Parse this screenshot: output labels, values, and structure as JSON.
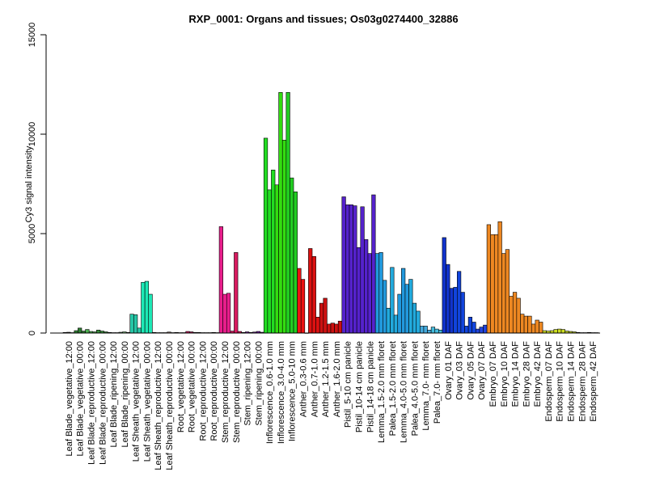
{
  "chart_data": {
    "type": "bar",
    "title": "RXP_0001: Organs and tissues; Os03g0274400_32886",
    "xlabel": "",
    "ylabel": "Cy3 signal intensity",
    "ylim": [
      0,
      15000
    ],
    "yticks": [
      0,
      5000,
      10000,
      15000
    ],
    "grid": false,
    "legend": "none",
    "categories": [
      "Leaf Blade_vegetative_12:00",
      "Leaf Blade_vegetative_00:00",
      "Leaf Blade_reproductive_12:00",
      "Leaf Blade_reproductive_00:00",
      "Leaf Blade_ripening_12:00",
      "Leaf Blade_ripening_00:00",
      "Leaf Sheath_vegetative_12:00",
      "Leaf Sheath_vegetative_00:00",
      "Leaf Sheath_reproductive_12:00",
      "Leaf Sheath_reproductive_00:00",
      "Root_vegetative_12:00",
      "Root_vegetative_00:00",
      "Root_reproductive_12:00",
      "Root_reproductive_00:00",
      "Stem_reproductive_12:00",
      "Stem_reproductive_00:00",
      "Stem_ripening_12:00",
      "Stem_ripening_00:00",
      "Inflorescence_0.6-1.0 mm",
      "Inflorescence_3.0-4.0 mm",
      "Inflorescence_5.0-10 mm",
      "Anther_0.3-0.6 mm",
      "Anther_0.7-1.0 mm",
      "Anther_1.2-1.5 mm",
      "Anther_1.6-2.0 mm",
      "Pistil_5-10 cm panicle",
      "Pistil_10-14 cm panicle",
      "Pistil_14-18 cm panicle",
      "Lemma_1.5-2.0 mm floret",
      "Palea_1.5-2.0 mm floret",
      "Lemma_4.0-5.0 mm floret",
      "Palea_4.0-5.0 mm floret",
      "Lemma_7.0- mm floret",
      "Palea_7.0- mm floret",
      "Ovary_01 DAF",
      "Ovary_03 DAF",
      "Ovary_05 DAF",
      "Ovary_07 DAF",
      "Embryo_07 DAF",
      "Embryo_10 DAF",
      "Embryo_14 DAF",
      "Embryo_28 DAF",
      "Embryo_42 DAF",
      "Endosperm_07 DAF",
      "Endosperm_10 DAF",
      "Endosperm_14 DAF",
      "Endosperm_28 DAF",
      "Endosperm_42 DAF"
    ],
    "values": [
      [
        30,
        40,
        20
      ],
      [
        120,
        250,
        100
      ],
      [
        180,
        80,
        60
      ],
      [
        150,
        100,
        60
      ],
      [
        30,
        20,
        20
      ],
      [
        40,
        60,
        30
      ],
      [
        950,
        920,
        250
      ],
      [
        2550,
        2600,
        1950
      ],
      [
        30,
        20,
        20
      ],
      [
        20,
        50,
        20
      ],
      [
        30,
        20,
        20
      ],
      [
        80,
        60,
        30
      ],
      [
        30,
        20,
        20
      ],
      [
        20,
        30,
        20
      ],
      [
        5350,
        1950,
        2000
      ],
      [
        100,
        4050,
        80
      ],
      [
        30,
        60,
        30
      ],
      [
        50,
        80,
        40
      ],
      [
        9800,
        7200,
        8200
      ],
      [
        7450,
        12100,
        9700
      ],
      [
        12100,
        7800,
        7100
      ],
      [
        3250,
        2700,
        0
      ],
      [
        4250,
        3850,
        800
      ],
      [
        1500,
        1750,
        450
      ],
      [
        500,
        450,
        600
      ],
      [
        6850,
        6450,
        6450
      ],
      [
        6400,
        4300,
        6350
      ],
      [
        4700,
        4000,
        6950
      ],
      [
        4000,
        4050,
        2650
      ],
      [
        1250,
        3300,
        900
      ],
      [
        1950,
        3250,
        2450
      ],
      [
        2700,
        1500,
        1100
      ],
      [
        350,
        350,
        150
      ],
      [
        300,
        200,
        150
      ],
      [
        4800,
        3450,
        2250
      ],
      [
        2300,
        3100,
        2050
      ],
      [
        350,
        800,
        550
      ],
      [
        200,
        300,
        400
      ],
      [
        5450,
        4950,
        4950
      ],
      [
        5600,
        4000,
        4200
      ],
      [
        1850,
        2050,
        1750
      ],
      [
        950,
        850,
        850
      ],
      [
        450,
        650,
        550
      ],
      [
        120,
        100,
        120
      ],
      [
        180,
        200,
        180
      ],
      [
        100,
        80,
        60
      ],
      [
        30,
        20,
        20
      ],
      [
        30,
        20,
        20
      ]
    ],
    "colors": [
      "#1a1a1a",
      "#2e7d32",
      "#4caf50",
      "#388e3c",
      "#66bb6a",
      "#81c784",
      "#26c6a6",
      "#1de9b6",
      "#795548",
      "#8d6e63",
      "#6d4c41",
      "#c2185b",
      "#8e244d",
      "#880e4f",
      "#e91e8c",
      "#d81b60",
      "#7b1fa2",
      "#6a1b9a",
      "#22dd22",
      "#33dd11",
      "#22cc22",
      "#ee1111",
      "#dd1111",
      "#cc1111",
      "#cc1111",
      "#5522cc",
      "#5522cc",
      "#5522cc",
      "#2299dd",
      "#22aadd",
      "#2299dd",
      "#22aadd",
      "#44aadd",
      "#44bbdd",
      "#1133cc",
      "#1144dd",
      "#1144dd",
      "#2244dd",
      "#ee8822",
      "#ee8822",
      "#ee8822",
      "#ee8822",
      "#ee8822",
      "#ccdd22",
      "#ccdd22",
      "#bbcc22",
      "#aabb11",
      "#aabb11"
    ]
  }
}
